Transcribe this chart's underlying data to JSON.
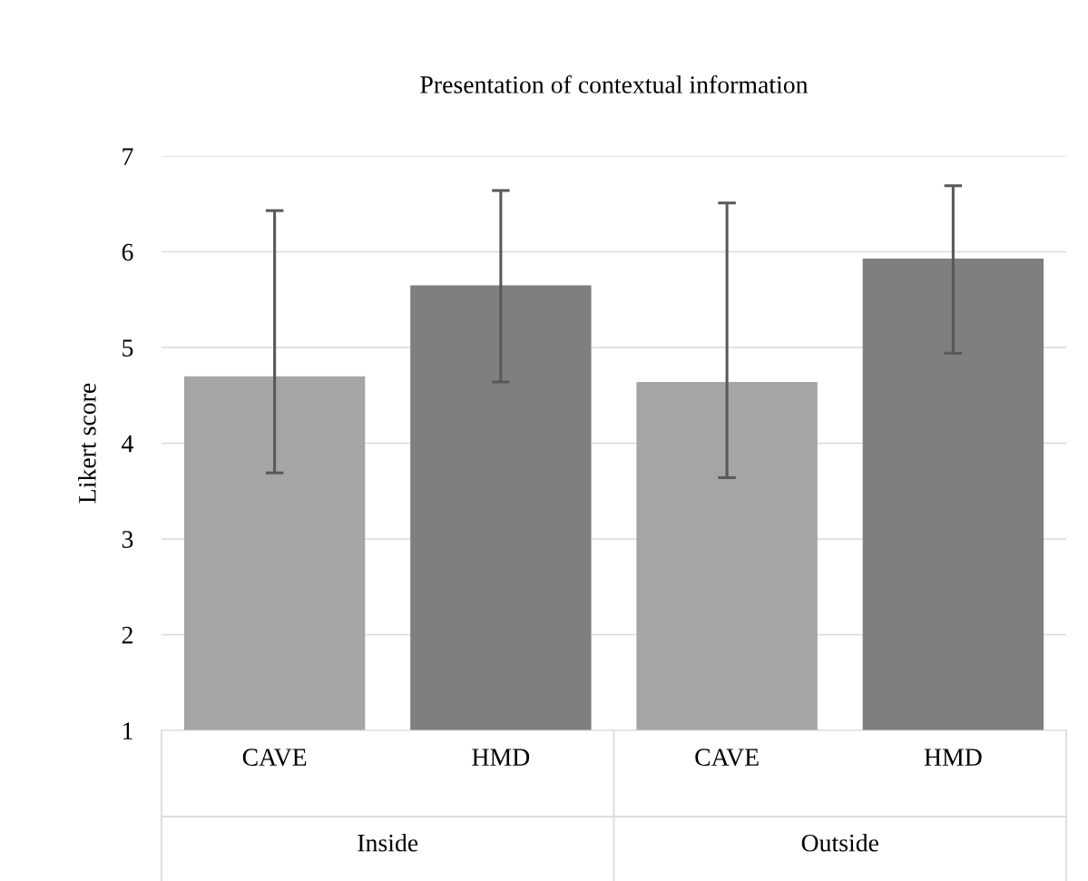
{
  "chart_data": {
    "type": "bar",
    "title": "Presentation of contextual information",
    "ylabel": "Likert score",
    "categories": [
      "CAVE",
      "HMD",
      "CAVE",
      "HMD"
    ],
    "values": [
      4.7,
      5.65,
      4.64,
      5.93
    ],
    "colors": [
      "#a5a5a5",
      "#7f7f7f",
      "#a5a5a5",
      "#7f7f7f"
    ],
    "errors": [
      [
        3.69,
        6.43
      ],
      [
        4.64,
        6.64
      ],
      [
        3.64,
        6.51
      ],
      [
        4.94,
        6.69
      ]
    ],
    "annotations": [
      "Inside",
      "Outside"
    ],
    "ylim": [
      1,
      7
    ],
    "yticks": [
      1,
      2,
      3,
      4,
      5,
      6,
      7
    ],
    "grid": "y"
  }
}
